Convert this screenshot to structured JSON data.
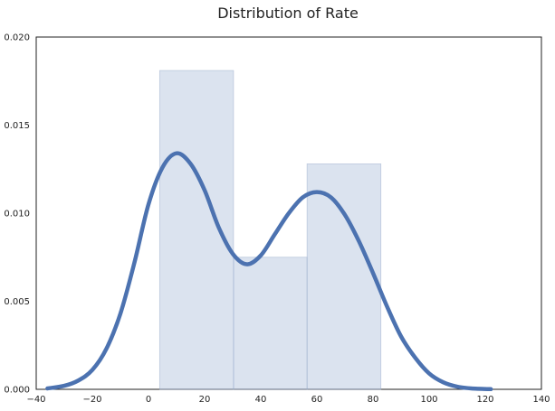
{
  "chart_data": {
    "type": "histogram",
    "title": "Distribution of Rate",
    "xlabel": "",
    "ylabel": "",
    "xlim": [
      -40,
      140
    ],
    "ylim": [
      0,
      0.02
    ],
    "xticks": [
      -40,
      -20,
      0,
      20,
      40,
      60,
      80,
      100,
      120,
      140
    ],
    "yticks": [
      0.0,
      0.005,
      0.01,
      0.015,
      0.02
    ],
    "xtick_labels": [
      "−40",
      "−20",
      "0",
      "20",
      "40",
      "60",
      "80",
      "100",
      "120",
      "140"
    ],
    "ytick_labels": [
      "0.000",
      "0.005",
      "0.010",
      "0.015",
      "0.020"
    ],
    "grid": false,
    "legend": "none",
    "histogram": {
      "bins": [
        {
          "x0": 4.0,
          "x1": 30.3,
          "density": 0.0181
        },
        {
          "x0": 30.3,
          "x1": 56.5,
          "density": 0.0075
        },
        {
          "x0": 56.5,
          "x1": 82.8,
          "density": 0.0128
        }
      ],
      "color": "#4c72b0",
      "opacity": 0.2
    },
    "kde": {
      "color": "#4c72b0",
      "x": [
        -36,
        -30,
        -25,
        -20,
        -15,
        -10,
        -5,
        0,
        5,
        10,
        15,
        20,
        25,
        30,
        35,
        40,
        45,
        50,
        55,
        60,
        65,
        70,
        75,
        80,
        85,
        90,
        95,
        100,
        105,
        110,
        115,
        122
      ],
      "y": [
        5e-05,
        0.0002,
        0.0005,
        0.0011,
        0.0023,
        0.0043,
        0.0072,
        0.0105,
        0.0126,
        0.0134,
        0.0128,
        0.0113,
        0.0092,
        0.0077,
        0.0071,
        0.0076,
        0.0088,
        0.01,
        0.0109,
        0.0112,
        0.0109,
        0.0099,
        0.0084,
        0.0066,
        0.0047,
        0.003,
        0.0018,
        0.0009,
        0.0004,
        0.00015,
        5e-05,
        1e-05
      ]
    }
  }
}
